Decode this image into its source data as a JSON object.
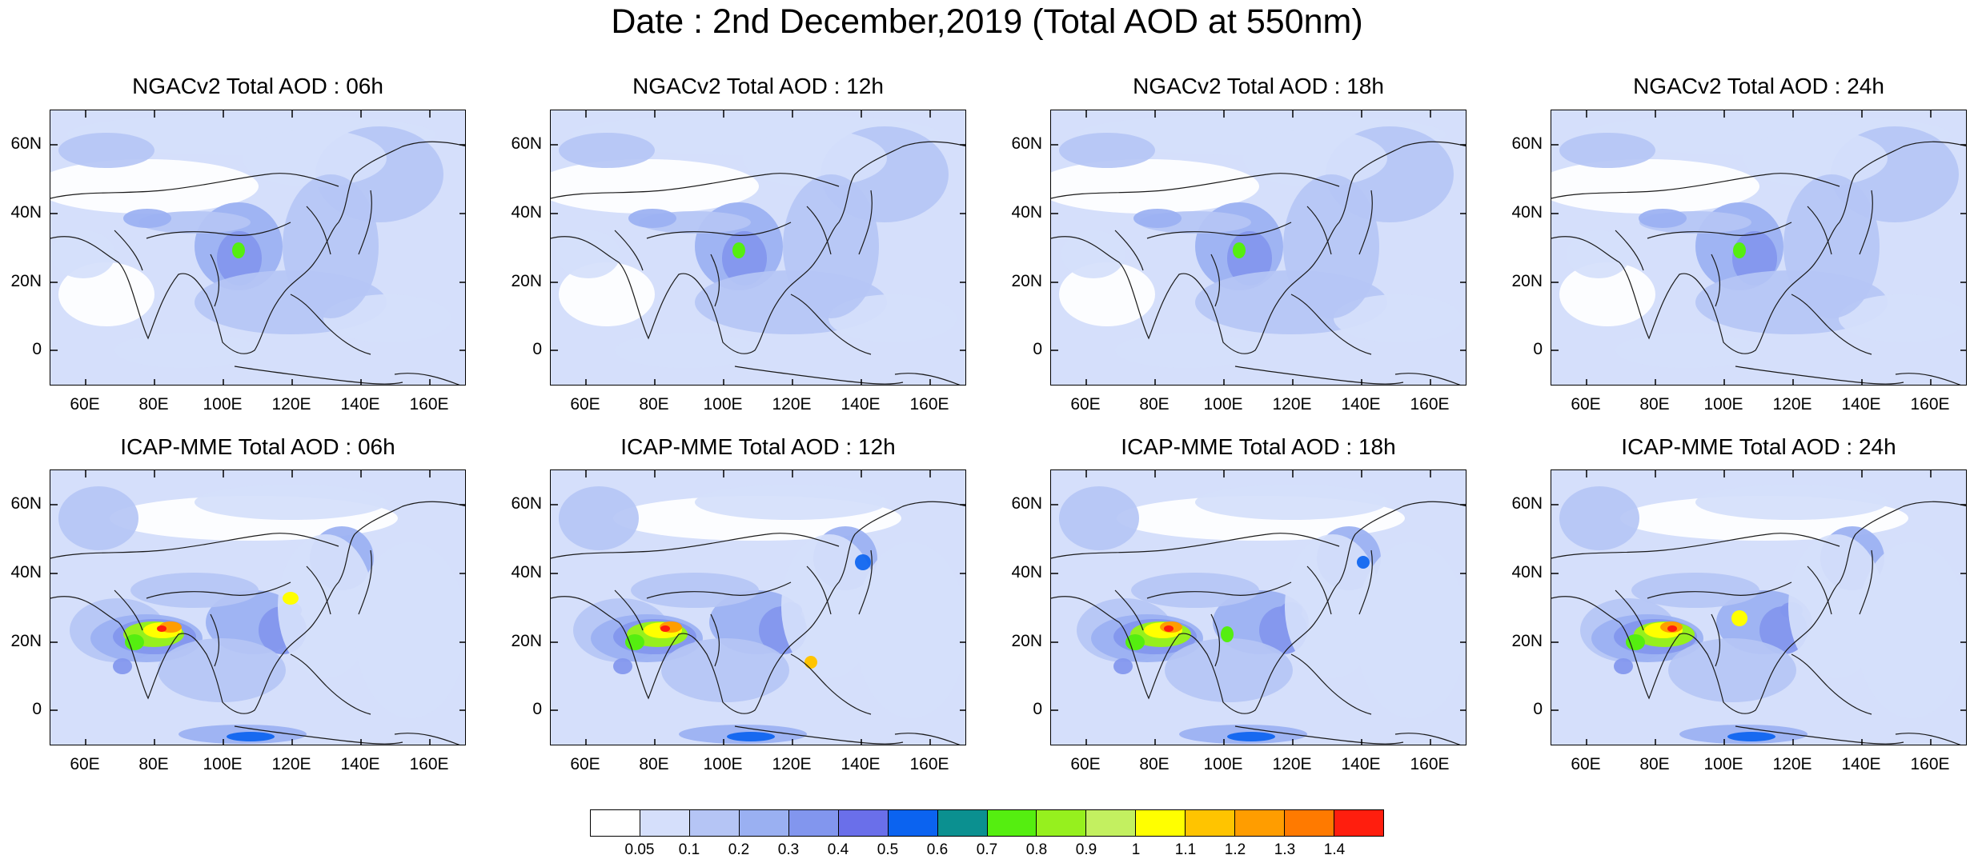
{
  "title": "Date : 2nd December,2019 (Total AOD at 550nm)",
  "panels": [
    {
      "title": "NGACv2 Total AOD : 06h",
      "model": "NGACv2"
    },
    {
      "title": "NGACv2 Total AOD : 12h",
      "model": "NGACv2"
    },
    {
      "title": "NGACv2 Total AOD : 18h",
      "model": "NGACv2"
    },
    {
      "title": "NGACv2 Total AOD : 24h",
      "model": "NGACv2"
    },
    {
      "title": "ICAP-MME Total AOD : 06h",
      "model": "ICAP-MME"
    },
    {
      "title": "ICAP-MME Total AOD : 12h",
      "model": "ICAP-MME"
    },
    {
      "title": "ICAP-MME Total AOD : 18h",
      "model": "ICAP-MME"
    },
    {
      "title": "ICAP-MME Total AOD : 24h",
      "model": "ICAP-MME"
    }
  ],
  "lat_ticks": [
    "60N",
    "40N",
    "20N",
    "0"
  ],
  "lon_ticks": [
    "60E",
    "80E",
    "100E",
    "120E",
    "140E",
    "160E"
  ],
  "colorbar": {
    "labels": [
      "0.05",
      "0.1",
      "0.2",
      "0.3",
      "0.4",
      "0.5",
      "0.6",
      "0.7",
      "0.8",
      "0.9",
      "1",
      "1.1",
      "1.2",
      "1.3",
      "1.4"
    ],
    "colors": [
      "#ffffff",
      "#d5dffb",
      "#b5c5f5",
      "#9ab0f2",
      "#8296ee",
      "#6a6fea",
      "#0b63f0",
      "#0b9090",
      "#55ee10",
      "#96f01e",
      "#c3f060",
      "#ffff00",
      "#ffc400",
      "#ff9d00",
      "#ff7a00",
      "#ff1e0e"
    ]
  }
}
